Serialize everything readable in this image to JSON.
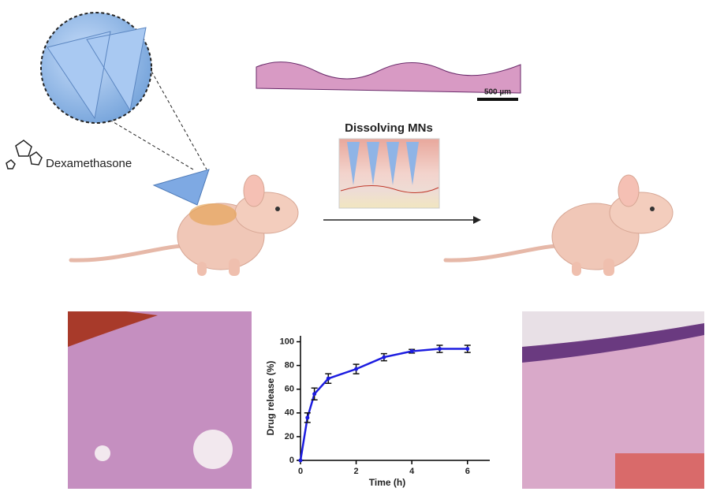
{
  "labels": {
    "dexamethasone": "Dexamethasone",
    "dissolving_mns": "Dissolving MNs",
    "scale_bar": "500 µm"
  },
  "chart_data": {
    "type": "line",
    "x_label": "Time (h)",
    "y_label": "Drug release (%)",
    "x": [
      0,
      0.25,
      0.5,
      1,
      2,
      3,
      4,
      5,
      6
    ],
    "series": [
      {
        "color": "#1c1ce0",
        "values": [
          0,
          36,
          56,
          69,
          77,
          87,
          92,
          94,
          94
        ],
        "errors": [
          0,
          4,
          5,
          4,
          4,
          3,
          1.5,
          3,
          3
        ]
      }
    ],
    "xlim": [
      0,
      6.8
    ],
    "ylim": [
      0,
      105
    ],
    "xticks": [
      0,
      2,
      4,
      6
    ],
    "yticks": [
      0,
      20,
      40,
      60,
      80,
      100
    ]
  }
}
